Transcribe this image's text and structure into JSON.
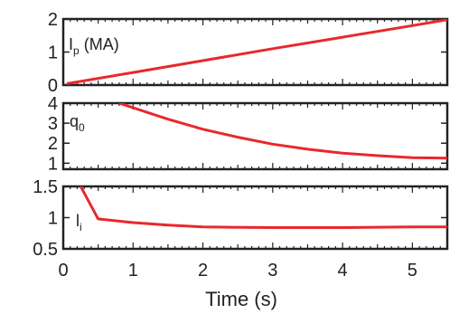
{
  "chart_data": {
    "type": "line",
    "xlabel": "Time (s)",
    "xlim": [
      0,
      5.5
    ],
    "x_ticks": [
      "0",
      "1",
      "2",
      "3",
      "4",
      "5"
    ],
    "x_tick_values": [
      0,
      1,
      2,
      3,
      4,
      5
    ],
    "line_color": "#e8282d",
    "panels": [
      {
        "label": "I",
        "label_sub": "p",
        "label_suffix": " (MA)",
        "ylim": [
          0,
          2
        ],
        "y_ticks": [
          "0",
          "1",
          "2"
        ],
        "y_tick_values": [
          0,
          1,
          2
        ],
        "series": {
          "x": [
            0.05,
            1,
            2,
            3,
            4,
            5,
            5.5
          ],
          "y": [
            0.04,
            0.38,
            0.74,
            1.1,
            1.45,
            1.8,
            1.98
          ]
        }
      },
      {
        "label": "q",
        "label_sub": "0",
        "label_suffix": "",
        "ylim": [
          0.7,
          4
        ],
        "y_ticks": [
          "1",
          "2",
          "3",
          "4"
        ],
        "y_tick_values": [
          1,
          2,
          3,
          4
        ],
        "series": {
          "x": [
            0.8,
            1.5,
            2,
            2.5,
            3,
            3.5,
            4,
            4.5,
            5,
            5.5
          ],
          "y": [
            4.0,
            3.2,
            2.7,
            2.3,
            1.95,
            1.7,
            1.5,
            1.38,
            1.28,
            1.25
          ]
        }
      },
      {
        "label": "l",
        "label_sub": "i",
        "label_suffix": "",
        "ylim": [
          0.5,
          1.5
        ],
        "y_ticks": [
          "0.5",
          "1",
          "1.5"
        ],
        "y_tick_values": [
          0.5,
          1,
          1.5
        ],
        "series": {
          "x": [
            0.25,
            0.5,
            1,
            1.5,
            2,
            3,
            4,
            5,
            5.5
          ],
          "y": [
            1.5,
            0.98,
            0.92,
            0.88,
            0.85,
            0.84,
            0.84,
            0.85,
            0.85
          ]
        }
      }
    ]
  }
}
